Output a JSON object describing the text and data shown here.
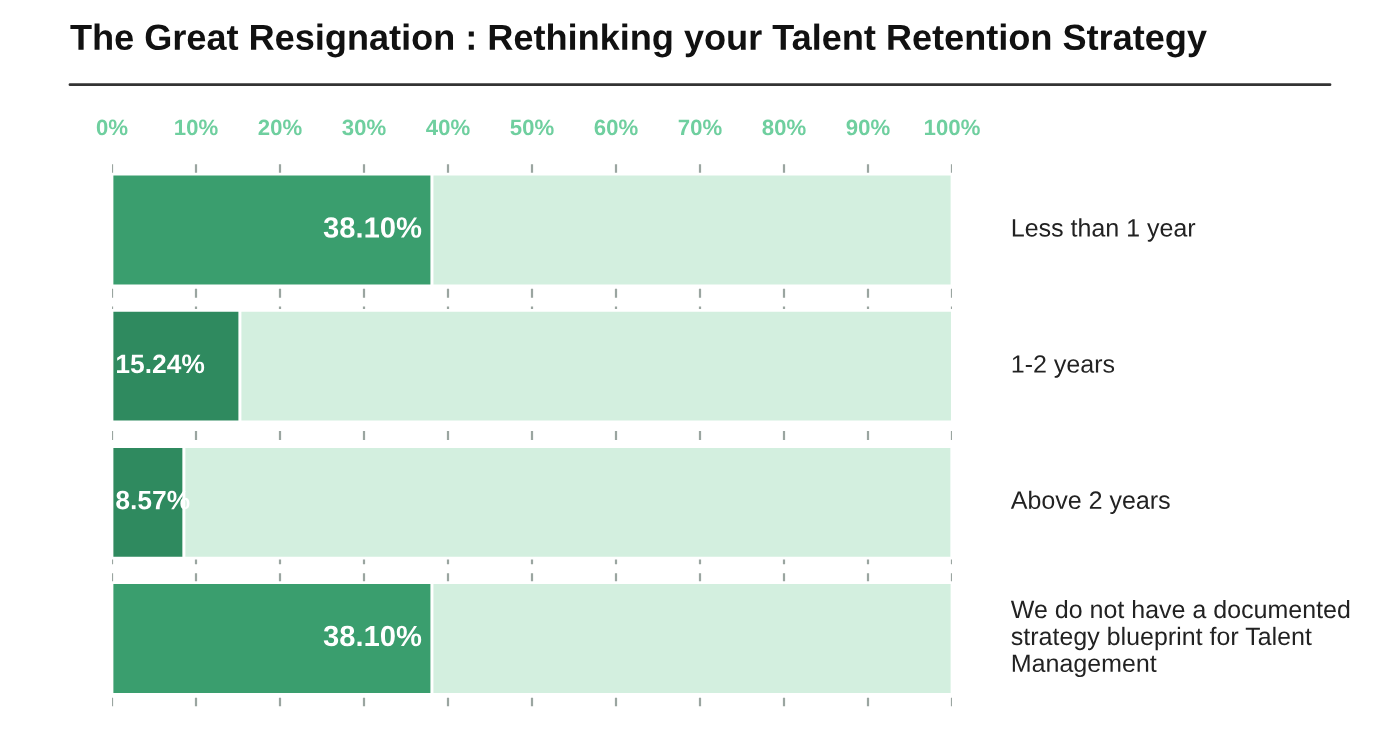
{
  "chart_data": {
    "type": "bar",
    "orientation": "horizontal",
    "stacked": true,
    "title": "The Great Resignation : Rethinking your Talent Retention Strategy",
    "categories": [
      "Less than 1 year",
      "1-2 years",
      "Above 2 years",
      "We do not have a documented strategy blueprint for Talent Management"
    ],
    "series": [
      {
        "colors": [
          "#3a9e6e",
          "#2f8a5f",
          "#2f8a5f",
          "#3a9e6e"
        ],
        "values": [
          38.1,
          15.24,
          8.57,
          38.1
        ],
        "value_labels": [
          "38.10%",
          "15.24%",
          "8.57%",
          "38.10%"
        ]
      },
      {
        "color": "#d3efdf",
        "values": [
          61.9,
          84.8,
          91.4,
          61.9
        ]
      }
    ],
    "xlim": [
      0,
      100
    ],
    "xticks": [
      {
        "value": 0,
        "label": "0%"
      },
      {
        "value": 10,
        "label": "10%"
      },
      {
        "value": 20,
        "label": "20%"
      },
      {
        "value": 30,
        "label": "30%"
      },
      {
        "value": 40,
        "label": "40%"
      },
      {
        "value": 50,
        "label": "50%"
      },
      {
        "value": 60,
        "label": "60%"
      },
      {
        "value": 70,
        "label": "70%"
      },
      {
        "value": 80,
        "label": "80%"
      },
      {
        "value": 90,
        "label": "90%"
      },
      {
        "value": 100,
        "label": "100%"
      }
    ],
    "grid": "x",
    "legend": false
  }
}
